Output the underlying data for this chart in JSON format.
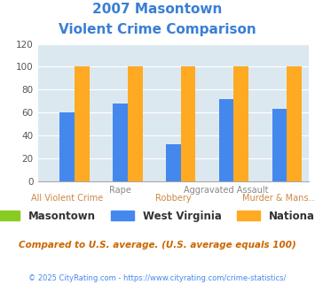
{
  "title_line1": "2007 Masontown",
  "title_line2": "Violent Crime Comparison",
  "title_color": "#3a7fd5",
  "categories": [
    "All Violent Crime",
    "Rape",
    "Robbery",
    "Aggravated Assault",
    "Murder & Mans..."
  ],
  "x_top_labels": [
    "",
    "Rape",
    "",
    "Aggravated Assault",
    ""
  ],
  "x_bottom_labels": [
    "All Violent Crime",
    "",
    "Robbery",
    "",
    "Murder & Mans..."
  ],
  "x_top_color": "#888888",
  "x_bottom_color": "#cc8844",
  "masontown_values": [
    0,
    0,
    0,
    0,
    0
  ],
  "wv_values": [
    60,
    68,
    32,
    72,
    63
  ],
  "national_values": [
    100,
    100,
    100,
    100,
    100
  ],
  "masontown_color": "#88cc22",
  "wv_color": "#4488ee",
  "national_color": "#ffaa22",
  "ylim": [
    0,
    120
  ],
  "yticks": [
    0,
    20,
    40,
    60,
    80,
    100,
    120
  ],
  "bar_width": 0.28,
  "chart_bg": "#dce8f0",
  "legend_labels": [
    "Masontown",
    "West Virginia",
    "National"
  ],
  "footnote1": "Compared to U.S. average. (U.S. average equals 100)",
  "footnote2": "© 2025 CityRating.com - https://www.cityrating.com/crime-statistics/",
  "footnote1_color": "#cc6600",
  "footnote2_color": "#4488ee"
}
